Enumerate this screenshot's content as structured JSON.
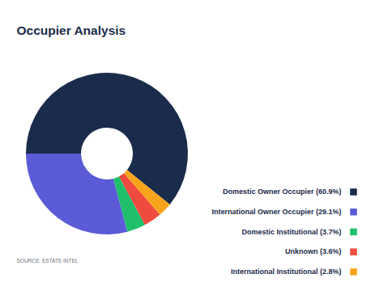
{
  "chart_data": {
    "type": "donut",
    "title": "Occupier Analysis",
    "categories": [
      "Domestic Owner Occupier (60.9%)",
      "International Owner Occupier (29.1%)",
      "Domestic Institutional (3.7%)",
      "Unknown (3.6%)",
      "International Institutional (2.8%)"
    ],
    "values": [
      60.9,
      29.1,
      3.7,
      3.6,
      2.8
    ],
    "colors": [
      "#1b2b4b",
      "#5b5bd8",
      "#1fbf6c",
      "#f04b3f",
      "#f7a41c"
    ],
    "legend": "right",
    "source": "SOURCE: ESTATE INTEL"
  }
}
